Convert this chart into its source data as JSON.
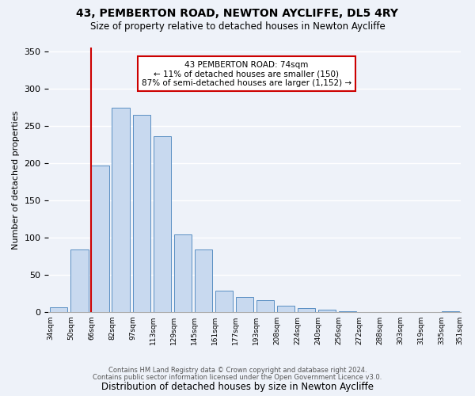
{
  "title": "43, PEMBERTON ROAD, NEWTON AYCLIFFE, DL5 4RY",
  "subtitle": "Size of property relative to detached houses in Newton Aycliffe",
  "xlabel": "Distribution of detached houses by size in Newton Aycliffe",
  "ylabel": "Number of detached properties",
  "bar_color": "#c8d9ef",
  "bar_edge_color": "#5a8fc3",
  "bin_labels": [
    "34sqm",
    "50sqm",
    "66sqm",
    "82sqm",
    "97sqm",
    "113sqm",
    "129sqm",
    "145sqm",
    "161sqm",
    "177sqm",
    "193sqm",
    "208sqm",
    "224sqm",
    "240sqm",
    "256sqm",
    "272sqm",
    "288sqm",
    "303sqm",
    "319sqm",
    "335sqm",
    "351sqm"
  ],
  "values": [
    6,
    84,
    196,
    274,
    265,
    236,
    104,
    84,
    28,
    20,
    16,
    8,
    5,
    3,
    1,
    0,
    0,
    0,
    0,
    1
  ],
  "ylim": [
    0,
    355
  ],
  "yticks": [
    0,
    50,
    100,
    150,
    200,
    250,
    300,
    350
  ],
  "vline_color": "#cc0000",
  "vline_bar_index": 2,
  "annotation_line1": "43 PEMBERTON ROAD: 74sqm",
  "annotation_line2": "← 11% of detached houses are smaller (150)",
  "annotation_line3": "87% of semi-detached houses are larger (1,152) →",
  "annotation_box_color": "#ffffff",
  "annotation_box_edge": "#cc0000",
  "footer1": "Contains HM Land Registry data © Crown copyright and database right 2024.",
  "footer2": "Contains public sector information licensed under the Open Government Licence v3.0.",
  "background_color": "#eef2f9"
}
